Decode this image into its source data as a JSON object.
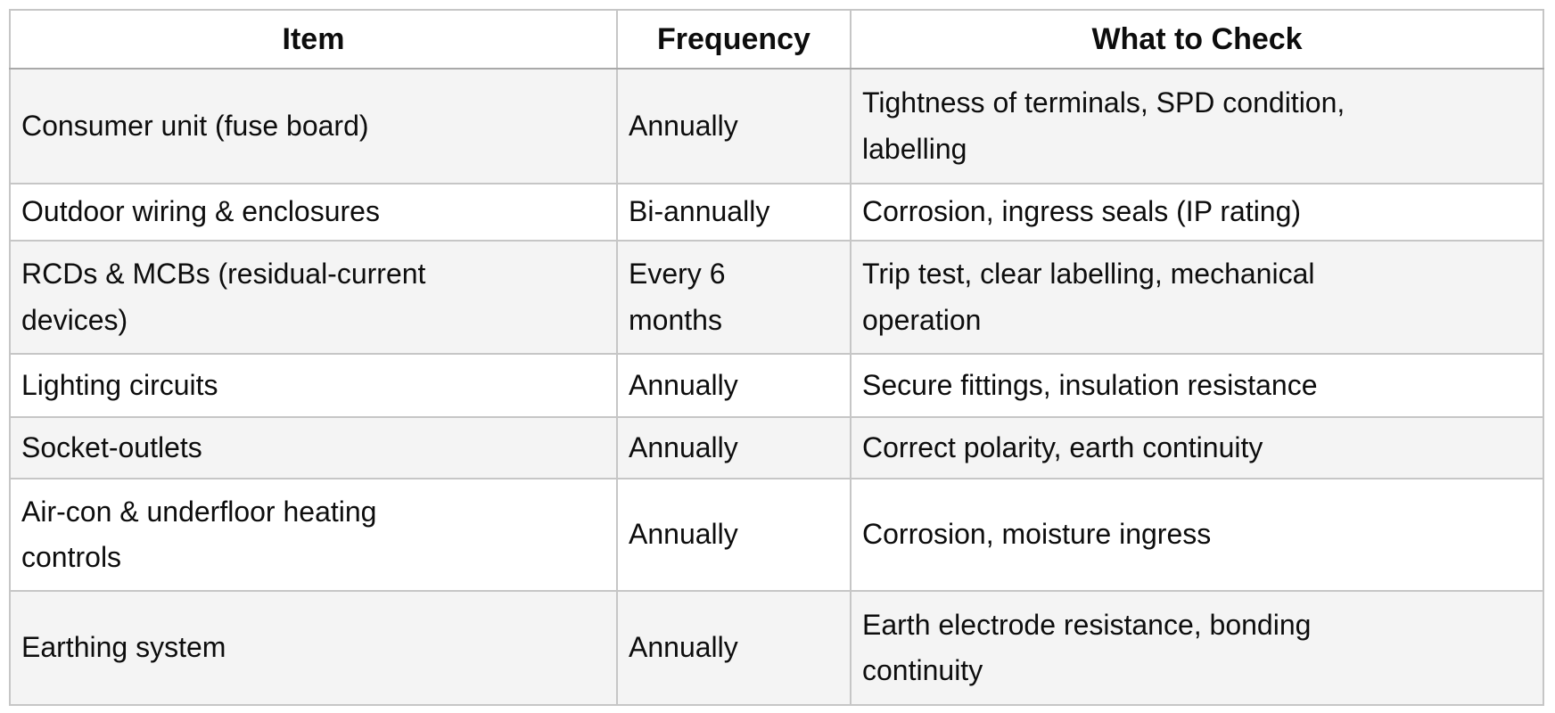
{
  "table": {
    "headers": {
      "item": "Item",
      "frequency": "Frequency",
      "check": "What to Check"
    },
    "rows": [
      {
        "item": "Consumer unit (fuse board)",
        "frequency": "Annually",
        "check": "Tightness of terminals, SPD condition, labelling"
      },
      {
        "item": "Outdoor wiring & enclosures",
        "frequency": "Bi-annually",
        "check": "Corrosion, ingress seals (IP rating)"
      },
      {
        "item": "RCDs & MCBs (residual-current devices)",
        "frequency": "Every 6 months",
        "check": "Trip test, clear labelling, mechanical operation"
      },
      {
        "item": "Lighting circuits",
        "frequency": "Annually",
        "check": "Secure fittings, insulation resistance"
      },
      {
        "item": "Socket-outlets",
        "frequency": "Annually",
        "check": "Correct polarity, earth continuity"
      },
      {
        "item": "Air-con & underfloor heating controls",
        "frequency": "Annually",
        "check": "Corrosion, moisture ingress"
      },
      {
        "item": "Earthing system",
        "frequency": "Annually",
        "check": "Earth electrode resistance, bonding continuity"
      }
    ]
  },
  "colors": {
    "row_alternate_background": "#f4f4f4",
    "border": "#c6c6c6",
    "header_divider": "#a9a9a9",
    "text": "#0d0d0d"
  }
}
